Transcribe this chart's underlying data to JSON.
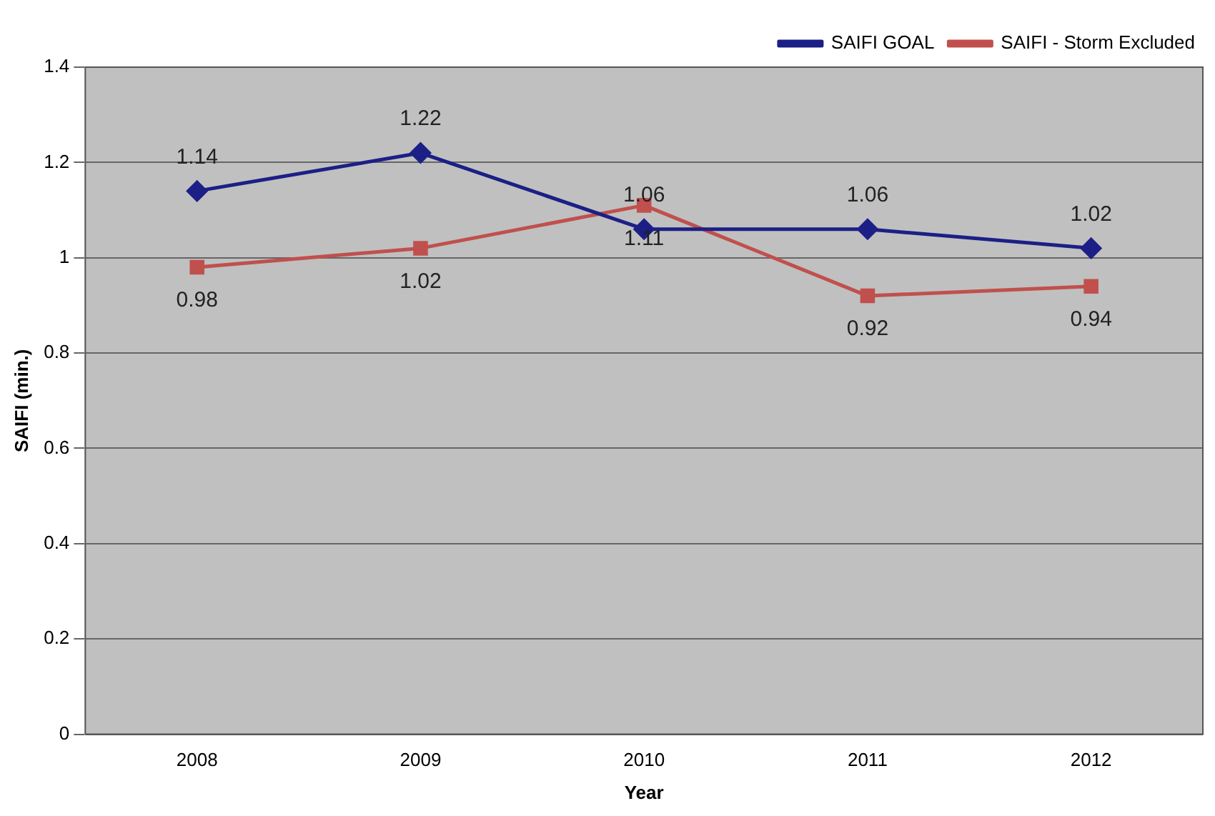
{
  "chart_data": {
    "type": "line",
    "xlabel": "Year",
    "ylabel": "SAIFI (min.)",
    "categories": [
      "2008",
      "2009",
      "2010",
      "2011",
      "2012"
    ],
    "series": [
      {
        "name": "SAIFI GOAL",
        "color": "#1c1f86",
        "marker": "diamond",
        "values": [
          1.14,
          1.22,
          1.06,
          1.06,
          1.02
        ]
      },
      {
        "name": "SAIFI - Storm Excluded",
        "color": "#c0504d",
        "marker": "square",
        "values": [
          0.98,
          1.02,
          1.11,
          0.92,
          0.94
        ]
      }
    ],
    "ylim": [
      0,
      1.4
    ],
    "yticks": [
      0,
      0.2,
      0.4,
      0.6,
      0.8,
      1,
      1.2,
      1.4
    ],
    "grid": "y",
    "legend": "top right",
    "data_labels": true,
    "line_style": "solid"
  }
}
